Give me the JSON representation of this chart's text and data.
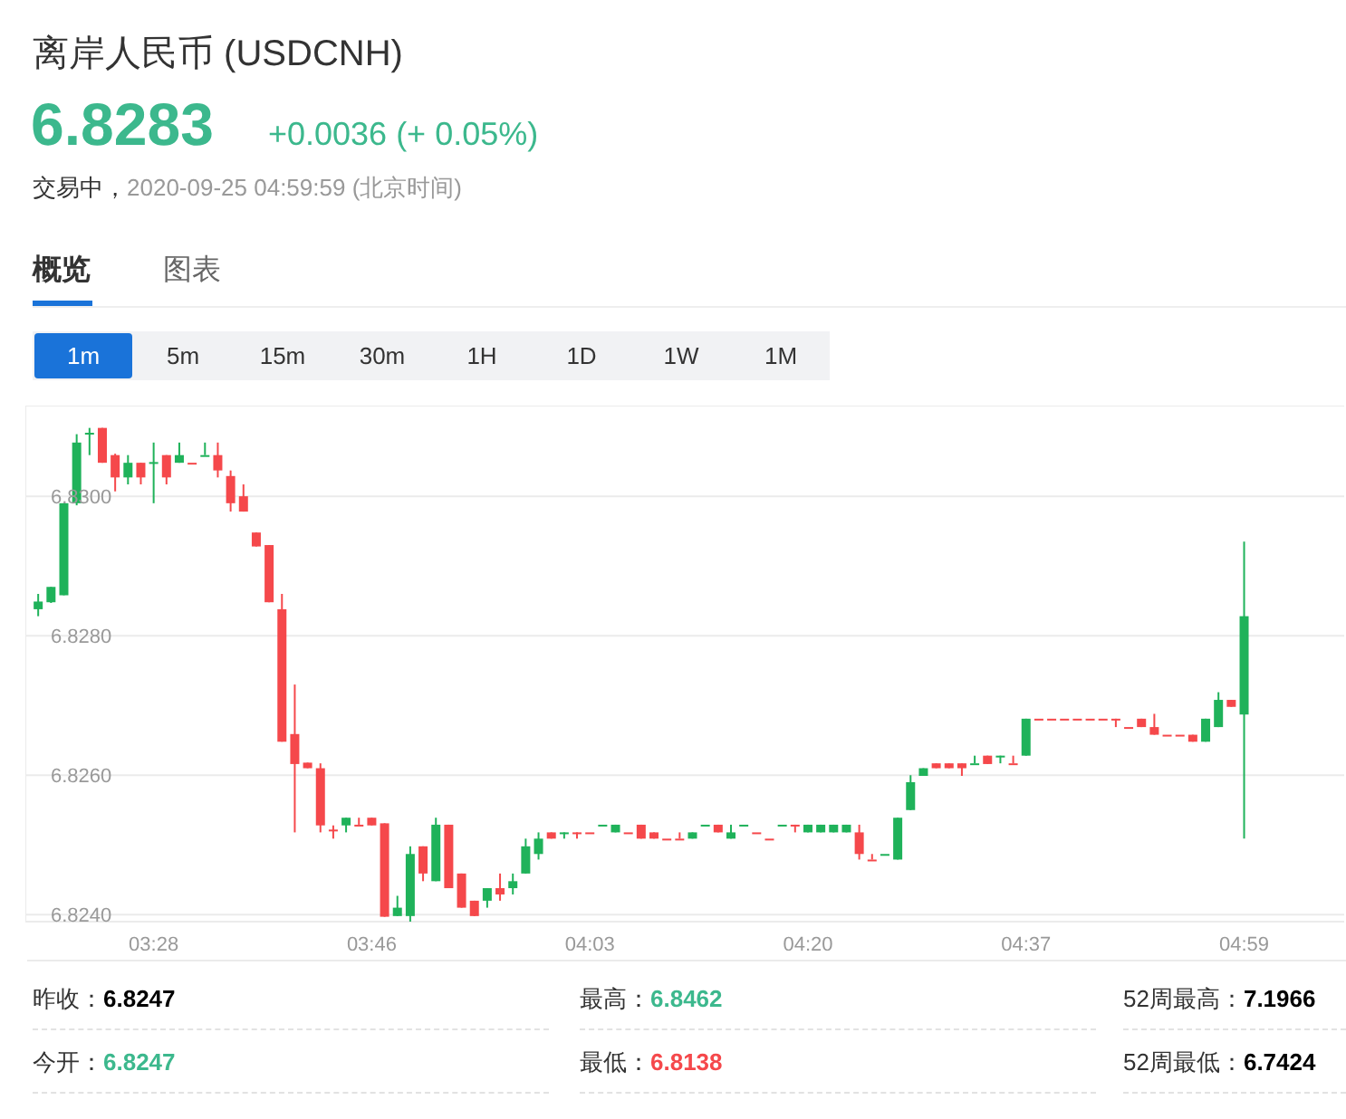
{
  "chart_data": {
    "type": "candlestick",
    "title": "离岸人民币 (USDCNH)",
    "annotations": [
      "6.8283",
      "+0.0036 (+ 0.05%)",
      "交易中，",
      "2020-09-25 04:59:59 (北京时间)",
      "概览",
      "图表",
      "1m",
      "5m",
      "15m",
      "30m",
      "1H",
      "1D",
      "1W",
      "1M",
      "昨收：",
      "6.8247",
      "最高：",
      "6.8462",
      "52周最高：",
      "7.1966",
      "今开：",
      "6.8247",
      "最低：",
      "6.8138",
      "52周最低：",
      "6.7424"
    ],
    "categories": [
      null,
      null,
      null,
      null,
      null,
      null,
      null,
      null,
      null,
      "03:28",
      null,
      null,
      null,
      null,
      null,
      null,
      null,
      null,
      null,
      null,
      null,
      null,
      null,
      null,
      null,
      null,
      "03:46",
      null,
      null,
      null,
      null,
      null,
      null,
      null,
      null,
      null,
      null,
      null,
      null,
      null,
      null,
      null,
      null,
      "04:03",
      null,
      null,
      null,
      null,
      null,
      null,
      null,
      null,
      null,
      null,
      null,
      null,
      null,
      null,
      null,
      null,
      "04:20",
      null,
      null,
      null,
      null,
      null,
      null,
      null,
      null,
      null,
      null,
      null,
      null,
      null,
      null,
      null,
      null,
      "04:37",
      null,
      null,
      null,
      null,
      null,
      null,
      null,
      null,
      null,
      null,
      null,
      null,
      null,
      null,
      null,
      null,
      "04:59"
    ],
    "ohlc": [
      [
        6.82838,
        6.8286,
        6.82828,
        6.82849
      ],
      [
        6.82848,
        6.8287,
        6.82847,
        6.8287
      ],
      [
        6.82858,
        6.8299,
        6.82858,
        6.8299
      ],
      [
        6.8299,
        6.83089,
        6.82987,
        6.83077
      ],
      [
        6.83089,
        6.83098,
        6.83059,
        6.83091
      ],
      [
        6.83098,
        6.83098,
        6.83048,
        6.83048
      ],
      [
        6.83059,
        6.83061,
        6.83007,
        6.83027
      ],
      [
        6.83027,
        6.83059,
        6.83017,
        6.83048
      ],
      [
        6.83048,
        6.83048,
        6.83017,
        6.83027
      ],
      [
        6.83048,
        6.83077,
        6.8299,
        6.83049
      ],
      [
        6.83059,
        6.83059,
        6.83017,
        6.83027
      ],
      [
        6.83048,
        6.83077,
        6.83048,
        6.83059
      ],
      [
        6.83048,
        6.83048,
        6.83048,
        6.83048
      ],
      [
        6.83059,
        6.83077,
        6.83059,
        6.83059
      ],
      [
        6.83059,
        6.83077,
        6.83027,
        6.83037
      ],
      [
        6.83029,
        6.83037,
        6.82978,
        6.8299
      ],
      [
        6.83,
        6.83017,
        6.82978,
        6.82978
      ],
      [
        6.82948,
        6.82948,
        6.82928,
        6.82928
      ],
      [
        6.8293,
        6.8293,
        6.82848,
        6.82848
      ],
      [
        6.82838,
        6.8286,
        6.82648,
        6.82648
      ],
      [
        6.82659,
        6.8273,
        6.82518,
        6.82616
      ],
      [
        6.82618,
        6.82618,
        6.8261,
        6.8261
      ],
      [
        6.8261,
        6.82617,
        6.82518,
        6.82528
      ],
      [
        6.82522,
        6.82528,
        6.82509,
        6.8252
      ],
      [
        6.82528,
        6.82539,
        6.82518,
        6.82539
      ],
      [
        6.82529,
        6.82539,
        6.82529,
        6.82529
      ],
      [
        6.82539,
        6.82539,
        6.82528,
        6.82528
      ],
      [
        6.82531,
        6.82531,
        6.82397,
        6.82397
      ],
      [
        6.82398,
        6.82427,
        6.82398,
        6.8241
      ],
      [
        6.82398,
        6.82498,
        6.8239,
        6.82487
      ],
      [
        6.82498,
        6.82498,
        6.82448,
        6.82459
      ],
      [
        6.82448,
        6.82539,
        6.82448,
        6.82529
      ],
      [
        6.82529,
        6.82529,
        6.82438,
        6.82438
      ],
      [
        6.82459,
        6.82459,
        6.8241,
        6.8241
      ],
      [
        6.8242,
        6.8242,
        6.82398,
        6.82398
      ],
      [
        6.8242,
        6.82438,
        6.8241,
        6.82438
      ],
      [
        6.82438,
        6.82459,
        6.8242,
        6.82429
      ],
      [
        6.82438,
        6.82459,
        6.82429,
        6.82448
      ],
      [
        6.82459,
        6.82509,
        6.82459,
        6.82498
      ],
      [
        6.82487,
        6.82518,
        6.82479,
        6.82509
      ],
      [
        6.82518,
        6.82518,
        6.82509,
        6.82509
      ],
      [
        6.82518,
        6.82518,
        6.82509,
        6.82518
      ],
      [
        6.82518,
        6.82518,
        6.82509,
        6.82518
      ],
      [
        6.82518,
        6.82518,
        6.82518,
        6.82518
      ],
      [
        6.82529,
        6.82529,
        6.82529,
        6.82529
      ],
      [
        6.82518,
        6.82529,
        6.82518,
        6.82529
      ],
      [
        6.82518,
        6.82518,
        6.82518,
        6.82518
      ],
      [
        6.82529,
        6.82529,
        6.82509,
        6.82509
      ],
      [
        6.82518,
        6.82518,
        6.82509,
        6.82509
      ],
      [
        6.82509,
        6.82509,
        6.82509,
        6.82509
      ],
      [
        6.82509,
        6.82518,
        6.82509,
        6.82509
      ],
      [
        6.82509,
        6.82518,
        6.82509,
        6.82518
      ],
      [
        6.82529,
        6.82529,
        6.82529,
        6.82529
      ],
      [
        6.82529,
        6.82529,
        6.82518,
        6.82518
      ],
      [
        6.82509,
        6.82529,
        6.82509,
        6.82518
      ],
      [
        6.82529,
        6.82529,
        6.82529,
        6.82529
      ],
      [
        6.82518,
        6.82518,
        6.82518,
        6.82518
      ],
      [
        6.82509,
        6.82509,
        6.82509,
        6.82509
      ],
      [
        6.82529,
        6.82529,
        6.82529,
        6.82529
      ],
      [
        6.82529,
        6.82529,
        6.82518,
        6.82529
      ],
      [
        6.82518,
        6.82529,
        6.82518,
        6.82529
      ],
      [
        6.82518,
        6.82529,
        6.82518,
        6.82529
      ],
      [
        6.82518,
        6.82529,
        6.82518,
        6.82529
      ],
      [
        6.82518,
        6.82529,
        6.82518,
        6.82529
      ],
      [
        6.82518,
        6.82529,
        6.82479,
        6.82487
      ],
      [
        6.82479,
        6.82487,
        6.82479,
        6.82479
      ],
      [
        6.82487,
        6.82487,
        6.82487,
        6.82487
      ],
      [
        6.82479,
        6.82539,
        6.82479,
        6.82539
      ],
      [
        6.8255,
        6.826,
        6.8255,
        6.8259
      ],
      [
        6.82599,
        6.8261,
        6.82599,
        6.8261
      ],
      [
        6.82617,
        6.82617,
        6.8261,
        6.8261
      ],
      [
        6.82617,
        6.82617,
        6.8261,
        6.8261
      ],
      [
        6.82617,
        6.82617,
        6.82599,
        6.8261
      ],
      [
        6.82617,
        6.82628,
        6.82617,
        6.82617
      ],
      [
        6.82628,
        6.82628,
        6.82616,
        6.82616
      ],
      [
        6.82628,
        6.82628,
        6.82617,
        6.82628
      ],
      [
        6.82617,
        6.82628,
        6.82617,
        6.82617
      ],
      [
        6.82628,
        6.82681,
        6.82628,
        6.82681
      ],
      [
        6.82681,
        6.82681,
        6.82681,
        6.82681
      ],
      [
        6.82681,
        6.82681,
        6.82681,
        6.82681
      ],
      [
        6.82681,
        6.82681,
        6.82681,
        6.82681
      ],
      [
        6.82681,
        6.82681,
        6.82681,
        6.82681
      ],
      [
        6.82681,
        6.82681,
        6.82681,
        6.82681
      ],
      [
        6.82681,
        6.82681,
        6.82681,
        6.82681
      ],
      [
        6.82681,
        6.82681,
        6.82669,
        6.82681
      ],
      [
        6.82669,
        6.82669,
        6.82669,
        6.82669
      ],
      [
        6.82681,
        6.82681,
        6.82669,
        6.82669
      ],
      [
        6.82669,
        6.82688,
        6.82658,
        6.82658
      ],
      [
        6.82658,
        6.82658,
        6.82658,
        6.82658
      ],
      [
        6.82658,
        6.82658,
        6.82658,
        6.82658
      ],
      [
        6.82658,
        6.82658,
        6.82648,
        6.82648
      ],
      [
        6.82648,
        6.82681,
        6.82648,
        6.82681
      ],
      [
        6.82669,
        6.82719,
        6.82669,
        6.82708
      ],
      [
        6.82708,
        6.82708,
        6.82698,
        6.82698
      ],
      [
        6.82687,
        6.82935,
        6.82509,
        6.82828
      ]
    ],
    "colors": [
      "#1fb25a",
      "#1fb25a",
      "#1fb25a",
      "#1fb25a",
      "#1fb25a",
      "#f5484b",
      "#f5484b",
      "#1fb25a",
      "#f5484b",
      "#1fb25a",
      "#f5484b",
      "#1fb25a",
      "#f5484b",
      "#1fb25a",
      "#f5484b",
      "#f5484b",
      "#f5484b",
      "#f5484b",
      "#f5484b",
      "#f5484b",
      "#f5484b",
      "#f5484b",
      "#f5484b",
      "#f5484b",
      "#1fb25a",
      "#f5484b",
      "#f5484b",
      "#f5484b",
      "#1fb25a",
      "#1fb25a",
      "#f5484b",
      "#1fb25a",
      "#f5484b",
      "#f5484b",
      "#f5484b",
      "#1fb25a",
      "#f5484b",
      "#1fb25a",
      "#1fb25a",
      "#1fb25a",
      "#f5484b",
      "#1fb25a",
      "#f5484b",
      "#f5484b",
      "#1fb25a",
      "#1fb25a",
      "#f5484b",
      "#f5484b",
      "#f5484b",
      "#f5484b",
      "#f5484b",
      "#1fb25a",
      "#1fb25a",
      "#f5484b",
      "#1fb25a",
      "#1fb25a",
      "#f5484b",
      "#f5484b",
      "#1fb25a",
      "#f5484b",
      "#1fb25a",
      "#1fb25a",
      "#1fb25a",
      "#1fb25a",
      "#f5484b",
      "#f5484b",
      "#1fb25a",
      "#1fb25a",
      "#1fb25a",
      "#1fb25a",
      "#f5484b",
      "#f5484b",
      "#f5484b",
      "#1fb25a",
      "#f5484b",
      "#1fb25a",
      "#f5484b",
      "#1fb25a",
      "#f5484b",
      "#f5484b",
      "#f5484b",
      "#f5484b",
      "#f5484b",
      "#f5484b",
      "#f5484b",
      "#f5484b",
      "#f5484b",
      "#f5484b",
      "#f5484b",
      "#f5484b",
      "#f5484b",
      "#1fb25a",
      "#1fb25a",
      "#f5484b",
      "#1fb25a"
    ],
    "ylim": [
      6.8239,
      6.8313
    ],
    "yticks": [
      {
        "value": 6.824,
        "label": "6.8240"
      },
      {
        "value": 6.826,
        "label": "6.8260"
      },
      {
        "value": 6.828,
        "label": "6.8280"
      },
      {
        "value": 6.83,
        "label": "6.8300"
      }
    ],
    "grid": "y"
  }
}
